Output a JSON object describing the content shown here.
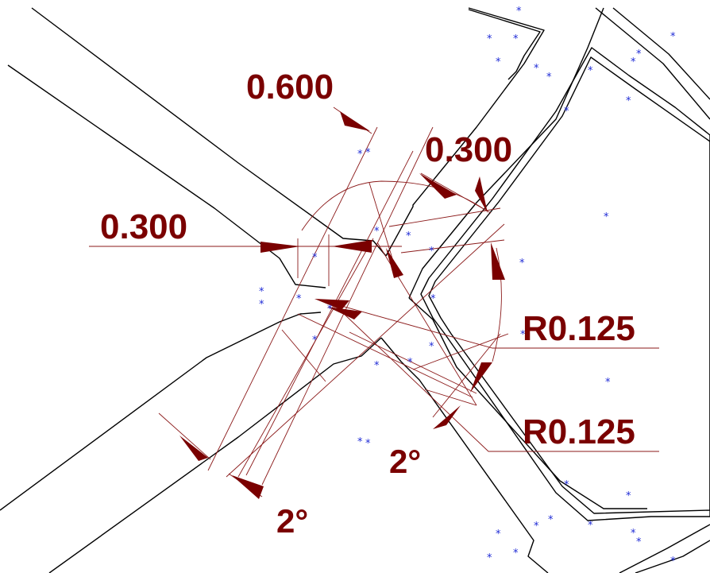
{
  "colors": {
    "background": "#ffffff",
    "geometry": "#000000",
    "dimension": "#7a0000",
    "markers": "#1f2bd6"
  },
  "marker_symbol": "*",
  "dimensions": {
    "width_top": "0.600",
    "gap_right": "0.300",
    "gap_left": "0.300",
    "radius_upper": "R0.125",
    "radius_lower": "R0.125",
    "angle_right": "2°",
    "angle_bottom": "2°"
  }
}
